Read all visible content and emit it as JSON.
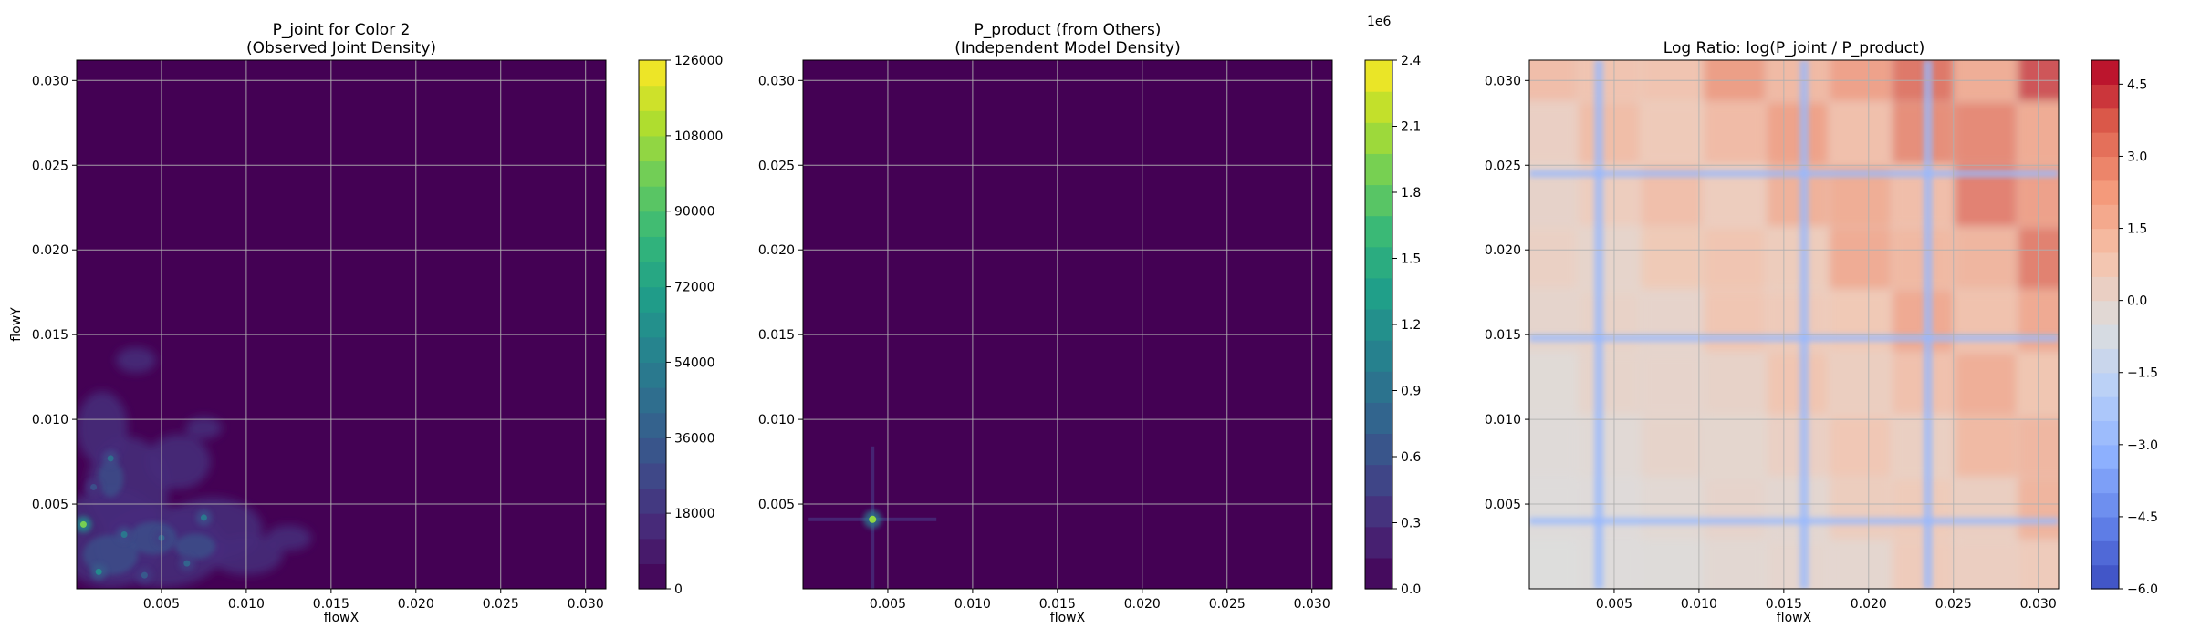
{
  "chart_data": [
    {
      "type": "heatmap",
      "title_line1": "P_joint for Color 2",
      "title_line2": "(Observed Joint Density)",
      "xlabel": "flowX",
      "ylabel": "flowY",
      "xlim": [
        0.0,
        0.0312
      ],
      "ylim": [
        0.0,
        0.0312
      ],
      "xticks": [
        0.005,
        0.01,
        0.015,
        0.02,
        0.025,
        0.03
      ],
      "xtick_labels": [
        "0.005",
        "0.010",
        "0.015",
        "0.020",
        "0.025",
        "0.030"
      ],
      "yticks": [
        0.005,
        0.01,
        0.015,
        0.02,
        0.025,
        0.03
      ],
      "ytick_labels": [
        "0.005",
        "0.010",
        "0.015",
        "0.020",
        "0.025",
        "0.030"
      ],
      "grid": true,
      "colormap": "viridis",
      "colorbar": {
        "min": 0,
        "max": 126000,
        "levels": 21,
        "tick_values": [
          0,
          18000,
          36000,
          54000,
          72000,
          90000,
          108000,
          126000
        ],
        "tick_labels": [
          "0",
          "18000",
          "36000",
          "54000",
          "72000",
          "90000",
          "108000",
          "126000"
        ],
        "offset_label": ""
      },
      "hotspots": [
        {
          "x": 0.0004,
          "y": 0.0038,
          "v": 100000
        },
        {
          "x": 0.0013,
          "y": 0.001,
          "v": 60000
        },
        {
          "x": 0.002,
          "y": 0.0077,
          "v": 45000
        },
        {
          "x": 0.0028,
          "y": 0.0032,
          "v": 50000
        },
        {
          "x": 0.005,
          "y": 0.003,
          "v": 40000
        },
        {
          "x": 0.0075,
          "y": 0.0042,
          "v": 50000
        },
        {
          "x": 0.0065,
          "y": 0.0015,
          "v": 40000
        },
        {
          "x": 0.004,
          "y": 0.0008,
          "v": 35000
        },
        {
          "x": 0.001,
          "y": 0.006,
          "v": 30000
        }
      ]
    },
    {
      "type": "heatmap",
      "title_line1": "P_product (from Others)",
      "title_line2": "(Independent Model Density)",
      "xlabel": "flowX",
      "ylabel": "",
      "xlim": [
        0.0,
        0.0312
      ],
      "ylim": [
        0.0,
        0.0312
      ],
      "xticks": [
        0.005,
        0.01,
        0.015,
        0.02,
        0.025,
        0.03
      ],
      "xtick_labels": [
        "0.005",
        "0.010",
        "0.015",
        "0.020",
        "0.025",
        "0.030"
      ],
      "yticks": [
        0.005,
        0.01,
        0.015,
        0.02,
        0.025,
        0.03
      ],
      "ytick_labels": [
        "0.005",
        "0.010",
        "0.015",
        "0.020",
        "0.025",
        "0.030"
      ],
      "grid": true,
      "colormap": "viridis",
      "colorbar": {
        "min": 0.0,
        "max": 2.4,
        "levels": 17,
        "tick_values": [
          0.0,
          0.3,
          0.6,
          0.9,
          1.2,
          1.5,
          1.8,
          2.1,
          2.4
        ],
        "tick_labels": [
          "0.0",
          "0.3",
          "0.6",
          "0.9",
          "1.2",
          "1.5",
          "1.8",
          "2.1",
          "2.4"
        ],
        "offset_label": "1e6"
      },
      "hotspots": [
        {
          "x": 0.0041,
          "y": 0.0041,
          "v": 2.0
        }
      ]
    },
    {
      "type": "heatmap",
      "title_line1": "Log Ratio: log(P_joint / P_product)",
      "title_line2": "",
      "xlabel": "flowX",
      "ylabel": "",
      "xlim": [
        0.0,
        0.0312
      ],
      "ylim": [
        0.0,
        0.0312
      ],
      "xticks": [
        0.005,
        0.01,
        0.015,
        0.02,
        0.025,
        0.03
      ],
      "xtick_labels": [
        "0.005",
        "0.010",
        "0.015",
        "0.020",
        "0.025",
        "0.030"
      ],
      "yticks": [
        0.005,
        0.01,
        0.015,
        0.02,
        0.025,
        0.03
      ],
      "ytick_labels": [
        "0.005",
        "0.010",
        "0.015",
        "0.020",
        "0.025",
        "0.030"
      ],
      "grid": true,
      "colormap": "coolwarm",
      "colorbar": {
        "min": -6.0,
        "max": 5.0,
        "levels": 22,
        "tick_values": [
          -6.0,
          -4.5,
          -3.0,
          -1.5,
          0.0,
          1.5,
          3.0,
          4.5
        ],
        "tick_labels": [
          "−6.0",
          "−4.5",
          "−3.0",
          "−1.5",
          "0.0",
          "1.5",
          "3.0",
          "4.5"
        ],
        "offset_label": ""
      },
      "cold_lines_x": [
        0.0041,
        0.0162,
        0.0235
      ],
      "cold_lines_y": [
        0.004,
        0.0148,
        0.0245
      ]
    }
  ]
}
